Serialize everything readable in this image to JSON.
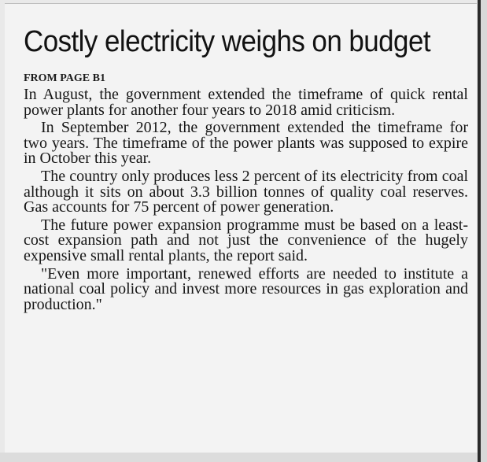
{
  "article": {
    "headline": "Costly electricity weighs on budget",
    "from_page": "FROM PAGE B1",
    "paragraphs": [
      "In August, the government extended the timeframe of quick rental power plants for another four years to 2018 amid criticism.",
      "In September 2012, the government extended the timeframe for two years. The timeframe of the power plants was supposed to expire in October this year.",
      "The country only produces less 2 percent of its electricity from coal although it sits on about 3.3 billion tonnes of quality coal reserves. Gas accounts for 75 percent of power generation.",
      "The future power expansion programme must be based on a least-cost expansion path and not just the convenience of the hugely expensive small rental plants, the report said.",
      "\"Even more important, renewed efforts are needed to institute a national coal policy and invest more resources in gas exploration and production.\""
    ]
  }
}
